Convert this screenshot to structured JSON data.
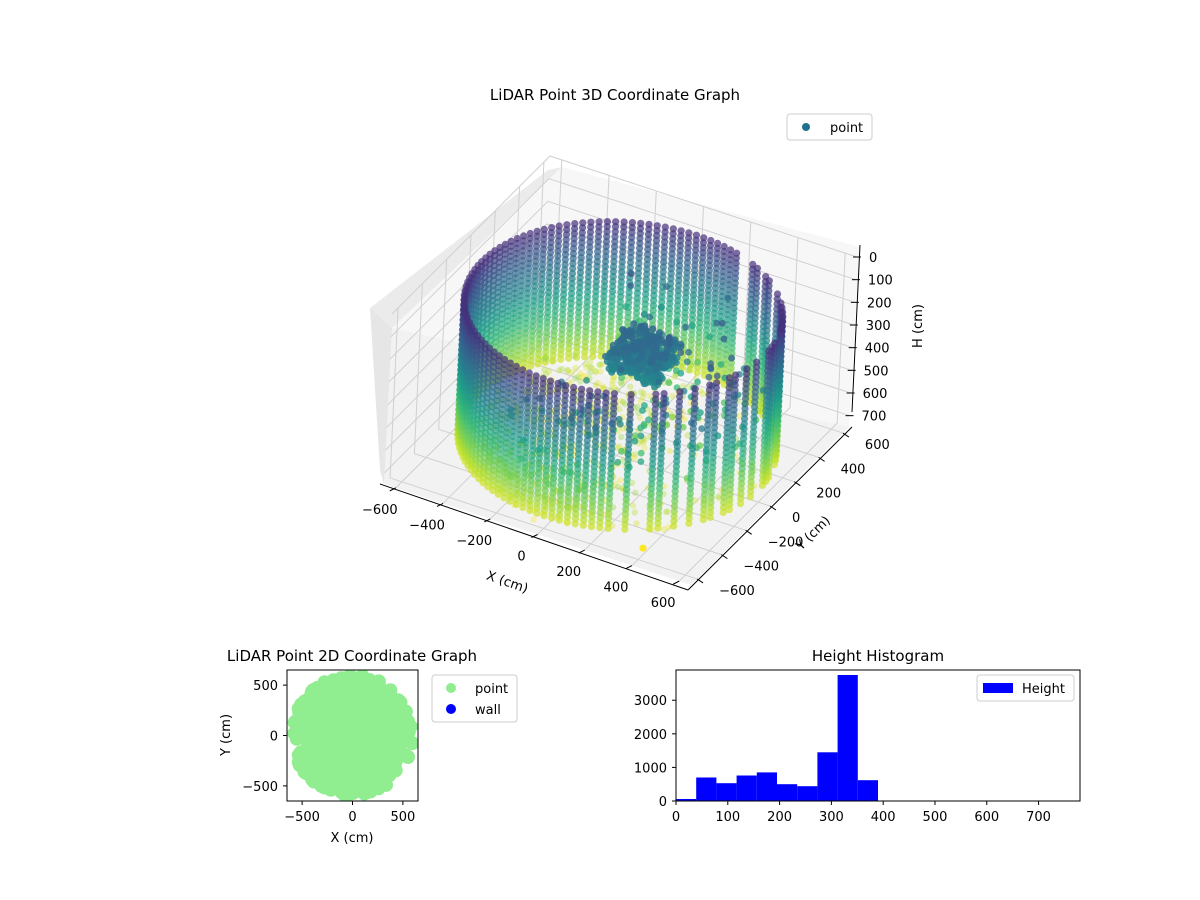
{
  "chart_data": [
    {
      "type": "scatter",
      "projection": "3d",
      "title": "LiDAR Point 3D Coordinate Graph",
      "xlabel": "X (cm)",
      "ylabel": "Y (cm)",
      "zlabel": "H (cm)",
      "xlim": [
        -650,
        650
      ],
      "ylim": [
        -650,
        650
      ],
      "zlim": [
        0,
        750
      ],
      "z_axis_inverted": true,
      "xticks": [
        -600,
        -400,
        -200,
        0,
        200,
        400,
        600
      ],
      "yticks": [
        -600,
        -400,
        -200,
        0,
        200,
        400,
        600
      ],
      "zticks": [
        0,
        100,
        200,
        300,
        400,
        500,
        600,
        700
      ],
      "colormap": "viridis",
      "grid": true,
      "legend": {
        "placement": "upper-right",
        "entries": [
          {
            "label": "point",
            "color": "#21718e"
          }
        ]
      },
      "series": [
        {
          "name": "point",
          "description_points": [
            {
              "x": 0,
              "y": 0,
              "h": 750,
              "note": "single isolated point"
            }
          ],
          "wall_radius_cm": 600,
          "wall_h_range": [
            100,
            700
          ],
          "inner_cluster_h_range": [
            250,
            350
          ]
        }
      ]
    },
    {
      "type": "scatter",
      "title": "LiDAR Point 2D Coordinate Graph",
      "xlabel": "X (cm)",
      "ylabel": "Y (cm)",
      "xlim": [
        -650,
        650
      ],
      "ylim": [
        -650,
        650
      ],
      "xticks": [
        -500,
        0,
        500
      ],
      "yticks": [
        -500,
        0,
        500
      ],
      "legend": {
        "placement": "outside-right",
        "entries": [
          {
            "label": "point",
            "color": "#90ee90"
          },
          {
            "label": "wall",
            "color": "#0000ff"
          }
        ]
      }
    },
    {
      "type": "bar",
      "subtype": "histogram",
      "title": "Height Histogram",
      "xlim": [
        0,
        780
      ],
      "ylim": [
        0,
        3900
      ],
      "xticks": [
        0,
        100,
        200,
        300,
        400,
        500,
        600,
        700
      ],
      "yticks": [
        0,
        1000,
        2000,
        3000
      ],
      "bin_width": 39,
      "bin_edges": [
        0,
        39,
        78,
        117,
        156,
        195,
        234,
        273,
        312,
        351,
        390
      ],
      "values": [
        60,
        700,
        530,
        760,
        850,
        500,
        440,
        1450,
        3750,
        620
      ],
      "legend": {
        "placement": "upper-right",
        "entries": [
          {
            "label": "Height",
            "color": "#0000ff"
          }
        ]
      },
      "bar_color": "#0000ff"
    }
  ]
}
